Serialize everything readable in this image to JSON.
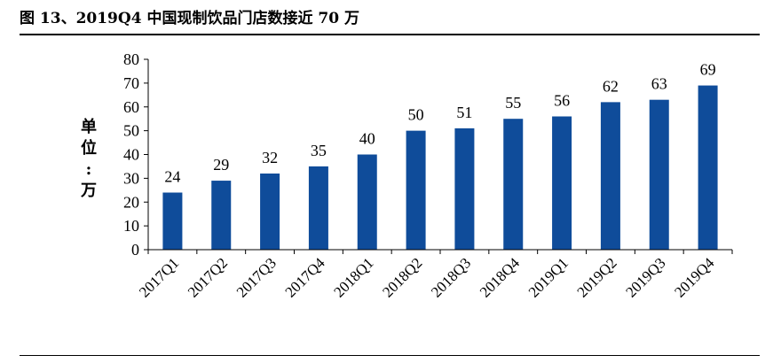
{
  "figure_title": "图 13、2019Q4 中国现制饮品门店数接近 70 万",
  "chart_data": {
    "type": "bar",
    "title": "图 13、2019Q4 中国现制饮品门店数接近 70 万",
    "ylabel": "单位：万",
    "xlabel": "",
    "categories": [
      "2017Q1",
      "2017Q2",
      "2017Q3",
      "2017Q4",
      "2018Q1",
      "2018Q2",
      "2018Q3",
      "2018Q4",
      "2019Q1",
      "2019Q2",
      "2019Q3",
      "2019Q4"
    ],
    "values": [
      24,
      29,
      32,
      35,
      40,
      50,
      51,
      55,
      56,
      62,
      63,
      69
    ],
    "ylim": [
      0,
      80
    ],
    "yticks": [
      0,
      10,
      20,
      30,
      40,
      50,
      60,
      70,
      80
    ],
    "bar_color": "#0f4c9a",
    "grid": false,
    "legend": "none",
    "data_labels": true
  }
}
